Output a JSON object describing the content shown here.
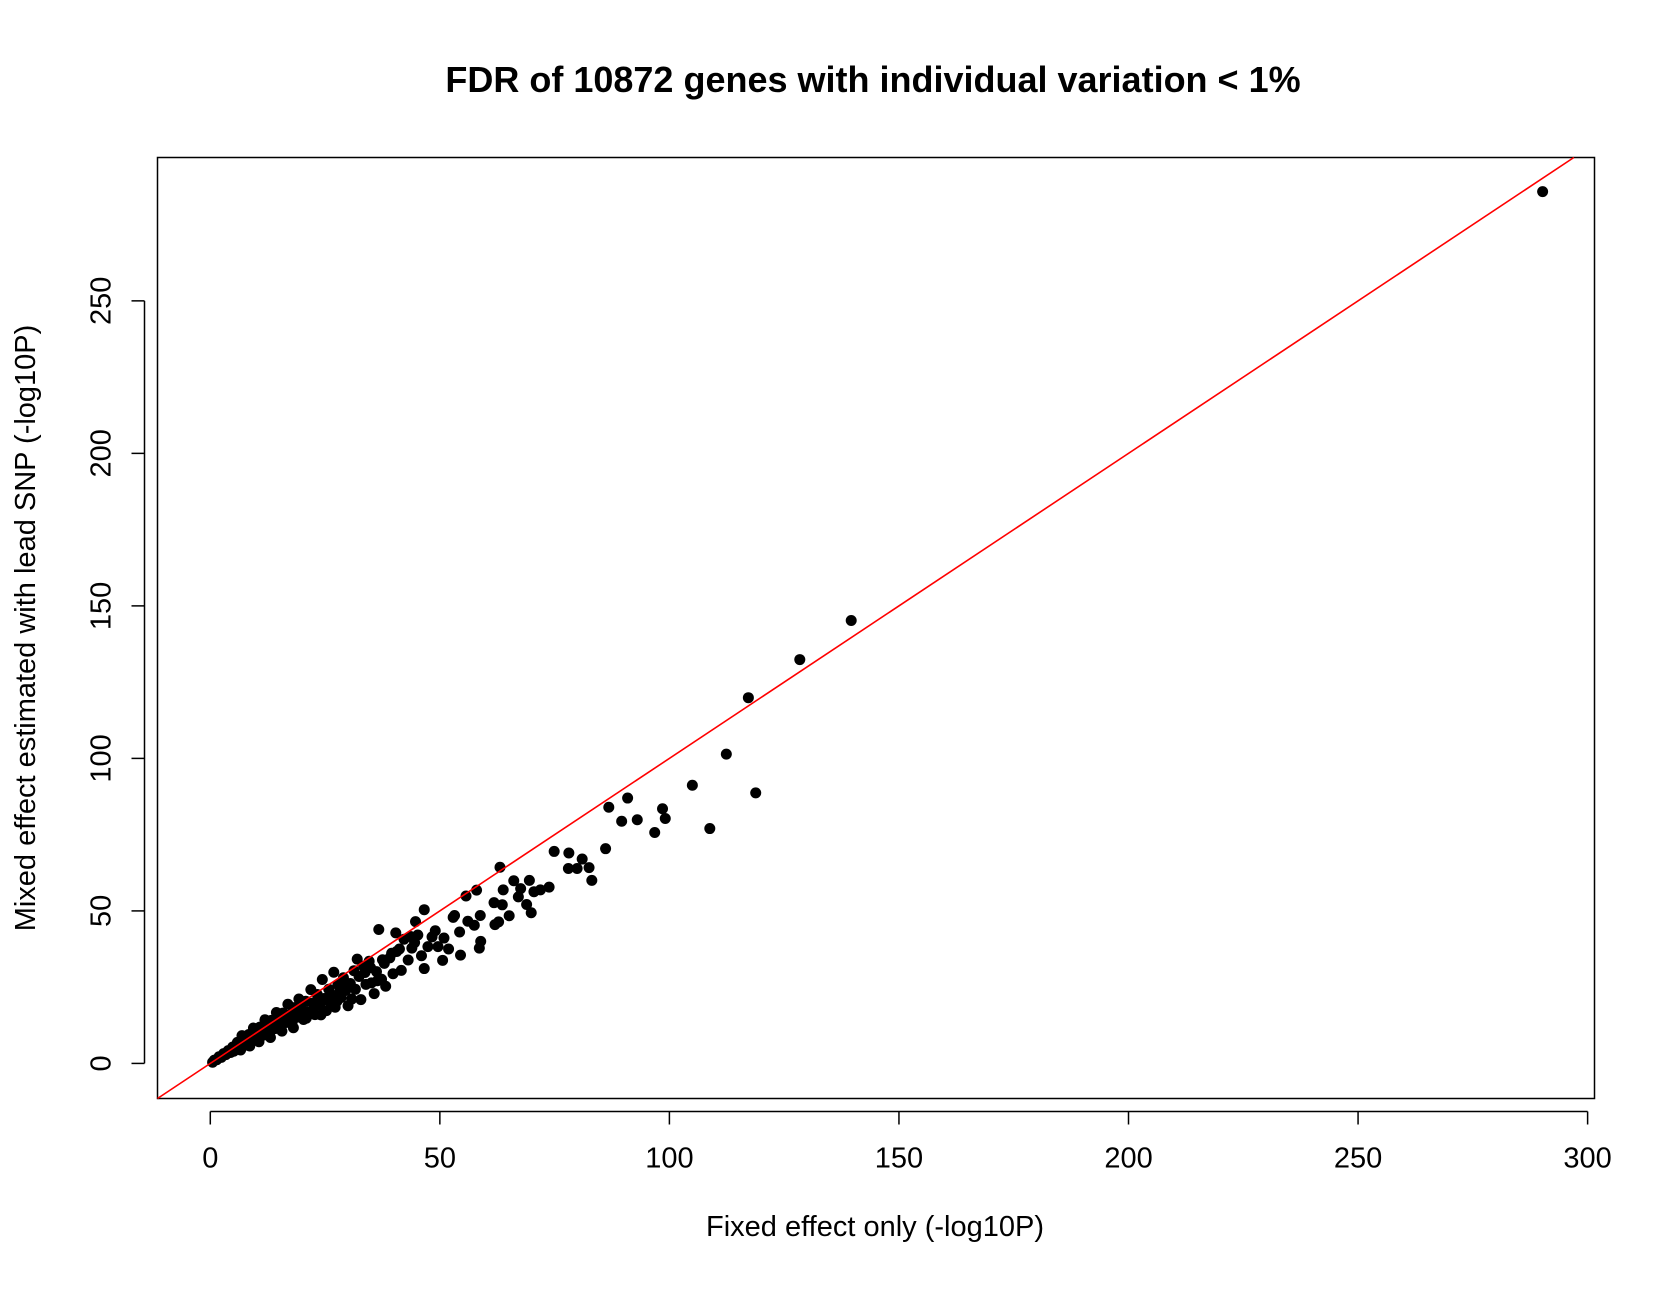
{
  "chart_data": {
    "type": "scatter",
    "title": "FDR of 10872 genes with individual variation < 1%",
    "xlabel": "Fixed effect only (-log10P)",
    "ylabel": "Mixed effect estimated with lead SNP (-log10P)",
    "xlim": [
      -11.5,
      301.5
    ],
    "ylim": [
      -11.5,
      297
    ],
    "xticks": [
      0,
      50,
      100,
      150,
      200,
      250,
      300
    ],
    "yticks": [
      0,
      50,
      100,
      150,
      200,
      250
    ],
    "grid": false,
    "legend": "none",
    "point_color": "#000000",
    "reference_line": {
      "description": "y = x",
      "color": "#ff0000",
      "slope": 1,
      "intercept": 0
    },
    "points": [
      [
        290.2,
        285.8
      ],
      [
        139.6,
        145.2
      ],
      [
        128.4,
        132.4
      ],
      [
        117.2,
        119.9
      ],
      [
        112.4,
        101.4
      ],
      [
        118.8,
        88.7
      ],
      [
        105.0,
        91.2
      ],
      [
        108.8,
        77.0
      ],
      [
        99.1,
        80.3
      ],
      [
        98.5,
        83.5
      ],
      [
        96.8,
        75.7
      ],
      [
        93.0,
        79.9
      ],
      [
        90.9,
        87.0
      ],
      [
        89.6,
        79.4
      ],
      [
        86.8,
        84.0
      ],
      [
        86.1,
        70.4
      ],
      [
        83.1,
        60.0
      ],
      [
        82.5,
        64.2
      ],
      [
        81.0,
        67.0
      ],
      [
        79.9,
        63.9
      ],
      [
        78.1,
        69.0
      ],
      [
        78.0,
        63.9
      ],
      [
        74.9,
        69.5
      ],
      [
        73.8,
        57.8
      ],
      [
        71.9,
        56.9
      ],
      [
        70.5,
        56.3
      ],
      [
        69.5,
        60.0
      ],
      [
        69.9,
        49.4
      ],
      [
        68.9,
        52.1
      ],
      [
        67.6,
        57.3
      ],
      [
        67.1,
        54.6
      ],
      [
        66.1,
        59.9
      ],
      [
        65.1,
        48.4
      ],
      [
        63.6,
        52.0
      ],
      [
        63.8,
        56.9
      ],
      [
        63.1,
        64.3
      ],
      [
        62.8,
        46.4
      ],
      [
        62.0,
        45.5
      ],
      [
        61.8,
        52.7
      ],
      [
        58.8,
        48.5
      ],
      [
        58.6,
        37.8
      ],
      [
        58.9,
        40.0
      ],
      [
        58.0,
        56.8
      ],
      [
        57.5,
        45.3
      ],
      [
        56.1,
        46.6
      ],
      [
        55.7,
        54.9
      ],
      [
        54.5,
        35.5
      ],
      [
        54.3,
        43.1
      ],
      [
        53.2,
        48.5
      ],
      [
        52.9,
        47.9
      ],
      [
        51.9,
        37.5
      ],
      [
        50.9,
        41.1
      ],
      [
        50.6,
        33.8
      ],
      [
        49.6,
        38.3
      ],
      [
        49.0,
        43.5
      ],
      [
        48.3,
        41.5
      ],
      [
        47.4,
        38.3
      ],
      [
        46.6,
        31.1
      ],
      [
        46.6,
        50.4
      ],
      [
        46.0,
        35.3
      ],
      [
        45.2,
        42.1
      ],
      [
        44.5,
        39.6
      ],
      [
        44.7,
        46.5
      ],
      [
        43.9,
        37.8
      ],
      [
        43.1,
        33.9
      ],
      [
        42.2,
        40.7
      ],
      [
        41.6,
        30.5
      ],
      [
        40.6,
        36.7
      ],
      [
        40.4,
        42.8
      ],
      [
        39.8,
        29.4
      ],
      [
        39.1,
        34.6
      ],
      [
        38.2,
        25.3
      ],
      [
        37.9,
        32.8
      ],
      [
        37.3,
        27.6
      ],
      [
        36.7,
        43.9
      ],
      [
        36.2,
        30.1
      ],
      [
        35.7,
        22.9
      ],
      [
        35.1,
        26.4
      ],
      [
        34.6,
        33.5
      ],
      [
        33.9,
        25.9
      ],
      [
        33.4,
        31.9
      ],
      [
        32.8,
        20.9
      ],
      [
        32.4,
        28.5
      ],
      [
        31.6,
        24.3
      ],
      [
        31.3,
        30.4
      ],
      [
        30.5,
        26.2
      ],
      [
        30.0,
        18.9
      ],
      [
        29.5,
        23.9
      ],
      [
        29.0,
        28.1
      ],
      [
        28.5,
        21.6
      ],
      [
        27.8,
        25.8
      ],
      [
        27.2,
        18.4
      ],
      [
        26.9,
        29.9
      ],
      [
        26.4,
        22.4
      ],
      [
        25.8,
        24.3
      ],
      [
        25.3,
        17.3
      ],
      [
        24.8,
        21.3
      ],
      [
        24.4,
        27.5
      ],
      [
        23.8,
        19.2
      ],
      [
        23.3,
        22.6
      ],
      [
        22.8,
        16.0
      ],
      [
        22.4,
        19.8
      ],
      [
        21.9,
        24.2
      ],
      [
        21.3,
        16.9
      ],
      [
        20.8,
        20.4
      ],
      [
        20.3,
        14.4
      ],
      [
        19.9,
        17.7
      ],
      [
        19.3,
        21.1
      ],
      [
        18.8,
        15.1
      ],
      [
        18.3,
        18.3
      ],
      [
        17.8,
        12.8
      ],
      [
        17.3,
        15.9
      ],
      [
        16.9,
        19.4
      ],
      [
        16.3,
        13.4
      ],
      [
        15.8,
        16.5
      ],
      [
        15.3,
        11.5
      ],
      [
        14.8,
        14.0
      ],
      [
        14.4,
        16.7
      ],
      [
        13.8,
        11.6
      ],
      [
        13.3,
        14.1
      ],
      [
        12.9,
        9.7
      ],
      [
        12.3,
        12.1
      ],
      [
        11.9,
        14.3
      ],
      [
        11.3,
        9.8
      ],
      [
        10.8,
        11.9
      ],
      [
        10.3,
        8.2
      ],
      [
        9.8,
        10.1
      ],
      [
        9.4,
        11.6
      ],
      [
        8.9,
        8.0
      ],
      [
        8.4,
        9.5
      ],
      [
        7.9,
        6.4
      ],
      [
        7.4,
        7.9
      ],
      [
        6.9,
        9.1
      ],
      [
        6.4,
        5.5
      ],
      [
        5.9,
        6.9
      ],
      [
        5.4,
        4.5
      ],
      [
        4.9,
        5.4
      ],
      [
        4.4,
        3.6
      ],
      [
        3.9,
        4.2
      ],
      [
        3.4,
        2.9
      ],
      [
        2.9,
        3.2
      ],
      [
        2.4,
        2.0
      ],
      [
        1.9,
        2.2
      ],
      [
        1.4,
        1.2
      ],
      [
        0.9,
        1.1
      ],
      [
        0.5,
        0.4
      ],
      [
        30.8,
        21.1
      ],
      [
        27.6,
        20.4
      ],
      [
        24.1,
        15.9
      ],
      [
        20.9,
        14.8
      ],
      [
        18.1,
        11.7
      ],
      [
        15.6,
        10.6
      ],
      [
        13.1,
        8.5
      ],
      [
        10.6,
        7.1
      ],
      [
        8.6,
        5.7
      ],
      [
        6.6,
        4.4
      ],
      [
        36.4,
        27.1
      ],
      [
        33.7,
        29.8
      ],
      [
        29.3,
        24.7
      ],
      [
        26.1,
        20.1
      ],
      [
        22.6,
        18.7
      ],
      [
        19.6,
        16.0
      ],
      [
        16.6,
        13.5
      ],
      [
        14.1,
        11.4
      ],
      [
        11.6,
        9.3
      ],
      [
        9.1,
        7.4
      ],
      [
        7.1,
        5.6
      ],
      [
        5.1,
        4.0
      ],
      [
        43.6,
        41.6
      ],
      [
        41.2,
        37.5
      ],
      [
        39.5,
        36.1
      ],
      [
        37.5,
        34.0
      ],
      [
        34.9,
        31.4
      ],
      [
        32.0,
        34.2
      ],
      [
        28.1,
        23.3
      ],
      [
        25.0,
        20.9
      ]
    ]
  }
}
